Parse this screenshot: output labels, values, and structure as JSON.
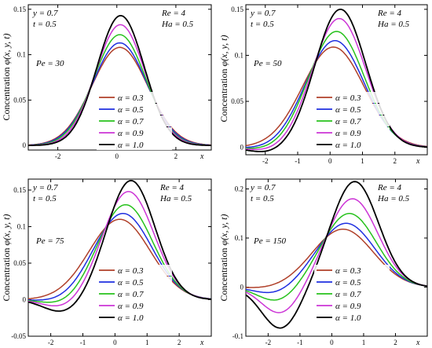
{
  "figure": {
    "common": {
      "ylabel": "Concentration",
      "ylabel_math": "φ(x, y, t)",
      "xlabel": "x"
    }
  },
  "series_style": [
    {
      "name": "α = 0.3",
      "color": "#b0402a"
    },
    {
      "name": "α = 0.5",
      "color": "#1f2fe0"
    },
    {
      "name": "α = 0.7",
      "color": "#27c21d"
    },
    {
      "name": "α = 0.9",
      "color": "#cc35d6"
    },
    {
      "name": "α = 1.0",
      "color": "#000000"
    }
  ],
  "chart_data": [
    {
      "type": "line",
      "pe": "Pe = 30",
      "params_left": [
        "y = 0.7",
        "t = 0.5"
      ],
      "params_right": [
        "Re = 4",
        "Ha = 0.5"
      ],
      "xlim": [
        -3,
        3.2
      ],
      "ylim": [
        -0.005,
        0.155
      ],
      "xticks": [
        -2,
        0,
        2
      ],
      "yticks": [
        0,
        0.05,
        0.1,
        0.15
      ],
      "ytick_labels": [
        "0",
        "0.05",
        "0.1",
        "0.15"
      ],
      "series_params": [
        {
          "name": "α = 0.3",
          "peak": 0.108,
          "mu": 0.1,
          "sigma": 0.95,
          "dip": 0,
          "dmu": 0,
          "dsig": 1
        },
        {
          "name": "α = 0.5",
          "peak": 0.113,
          "mu": 0.1,
          "sigma": 0.92,
          "dip": 0,
          "dmu": 0,
          "dsig": 1
        },
        {
          "name": "α = 0.7",
          "peak": 0.122,
          "mu": 0.1,
          "sigma": 0.88,
          "dip": 0,
          "dmu": 0,
          "dsig": 1
        },
        {
          "name": "α = 0.9",
          "peak": 0.133,
          "mu": 0.12,
          "sigma": 0.84,
          "dip": 0,
          "dmu": 0,
          "dsig": 1
        },
        {
          "name": "α = 1.0",
          "peak": 0.143,
          "mu": 0.13,
          "sigma": 0.8,
          "dip": 0,
          "dmu": 0,
          "dsig": 1
        }
      ]
    },
    {
      "type": "line",
      "pe": "Pe = 50",
      "params_left": [
        "y = 0.7",
        "t = 0.5"
      ],
      "params_right": [
        "Re = 4",
        "Ha = 0.5"
      ],
      "xlim": [
        -2.6,
        3.0
      ],
      "ylim": [
        -0.008,
        0.155
      ],
      "xticks": [
        -2,
        -1,
        0,
        1,
        2
      ],
      "yticks": [
        0,
        0.05,
        0.1,
        0.15
      ],
      "ytick_labels": [
        "0",
        "0.05",
        "0.1",
        "0.15"
      ],
      "series_params": [
        {
          "name": "α = 0.3",
          "peak": 0.109,
          "mu": 0.1,
          "sigma": 0.95,
          "dip": 0,
          "dmu": 0,
          "dsig": 1
        },
        {
          "name": "α = 0.5",
          "peak": 0.116,
          "mu": 0.15,
          "sigma": 0.9,
          "dip": 0.002,
          "dmu": -1.9,
          "dsig": 0.6
        },
        {
          "name": "α = 0.7",
          "peak": 0.126,
          "mu": 0.2,
          "sigma": 0.86,
          "dip": 0.003,
          "dmu": -1.9,
          "dsig": 0.6
        },
        {
          "name": "α = 0.9",
          "peak": 0.14,
          "mu": 0.28,
          "sigma": 0.82,
          "dip": 0.004,
          "dmu": -1.9,
          "dsig": 0.6
        },
        {
          "name": "α = 1.0",
          "peak": 0.15,
          "mu": 0.32,
          "sigma": 0.78,
          "dip": 0.006,
          "dmu": -1.9,
          "dsig": 0.6
        }
      ]
    },
    {
      "type": "line",
      "pe": "Pe = 75",
      "params_left": [
        "y = 0.7",
        "t = 0.5"
      ],
      "params_right": [
        "Re = 4",
        "Ha = 0.5"
      ],
      "xlim": [
        -2.7,
        3.0
      ],
      "ylim": [
        -0.05,
        0.165
      ],
      "xticks": [
        -2,
        -1,
        0,
        1,
        2
      ],
      "yticks": [
        -0.05,
        0,
        0.05,
        0.1,
        0.15
      ],
      "ytick_labels": [
        "-0.05",
        "0",
        "0.05",
        "0.1",
        "0.15"
      ],
      "series_params": [
        {
          "name": "α = 0.3",
          "peak": 0.11,
          "mu": 0.15,
          "sigma": 0.95,
          "dip": 0,
          "dmu": 0,
          "dsig": 1
        },
        {
          "name": "α = 0.5",
          "peak": 0.118,
          "mu": 0.25,
          "sigma": 0.9,
          "dip": 0.004,
          "dmu": -1.7,
          "dsig": 0.6
        },
        {
          "name": "α = 0.7",
          "peak": 0.13,
          "mu": 0.33,
          "sigma": 0.85,
          "dip": 0.008,
          "dmu": -1.6,
          "dsig": 0.6
        },
        {
          "name": "α = 0.9",
          "peak": 0.148,
          "mu": 0.42,
          "sigma": 0.8,
          "dip": 0.012,
          "dmu": -1.6,
          "dsig": 0.6
        },
        {
          "name": "α = 1.0",
          "peak": 0.163,
          "mu": 0.5,
          "sigma": 0.75,
          "dip": 0.018,
          "dmu": -1.6,
          "dsig": 0.6
        }
      ]
    },
    {
      "type": "line",
      "pe": "Pe = 150",
      "params_left": [
        "y = 0.7",
        "t = 0.5"
      ],
      "params_right": [
        "Re = 4",
        "Ha = 0.5"
      ],
      "xlim": [
        -2.7,
        3.0
      ],
      "ylim": [
        -0.1,
        0.22
      ],
      "xticks": [
        -2,
        -1,
        0,
        1,
        2
      ],
      "yticks": [
        -0.1,
        0,
        0.1,
        0.2
      ],
      "ytick_labels": [
        "-0.1",
        "0",
        "0.1",
        "0.2"
      ],
      "series_params": [
        {
          "name": "α = 0.3",
          "peak": 0.118,
          "mu": 0.35,
          "sigma": 0.95,
          "dip": 0.003,
          "dmu": -2.0,
          "dsig": 0.6
        },
        {
          "name": "α = 0.5",
          "peak": 0.13,
          "mu": 0.45,
          "sigma": 0.9,
          "dip": 0.015,
          "dmu": -1.8,
          "dsig": 0.6
        },
        {
          "name": "α = 0.7",
          "peak": 0.15,
          "mu": 0.55,
          "sigma": 0.85,
          "dip": 0.03,
          "dmu": -1.7,
          "dsig": 0.6
        },
        {
          "name": "α = 0.9",
          "peak": 0.18,
          "mu": 0.65,
          "sigma": 0.8,
          "dip": 0.055,
          "dmu": -1.6,
          "dsig": 0.6
        },
        {
          "name": "α = 1.0",
          "peak": 0.215,
          "mu": 0.72,
          "sigma": 0.75,
          "dip": 0.085,
          "dmu": -1.6,
          "dsig": 0.6
        }
      ]
    }
  ]
}
